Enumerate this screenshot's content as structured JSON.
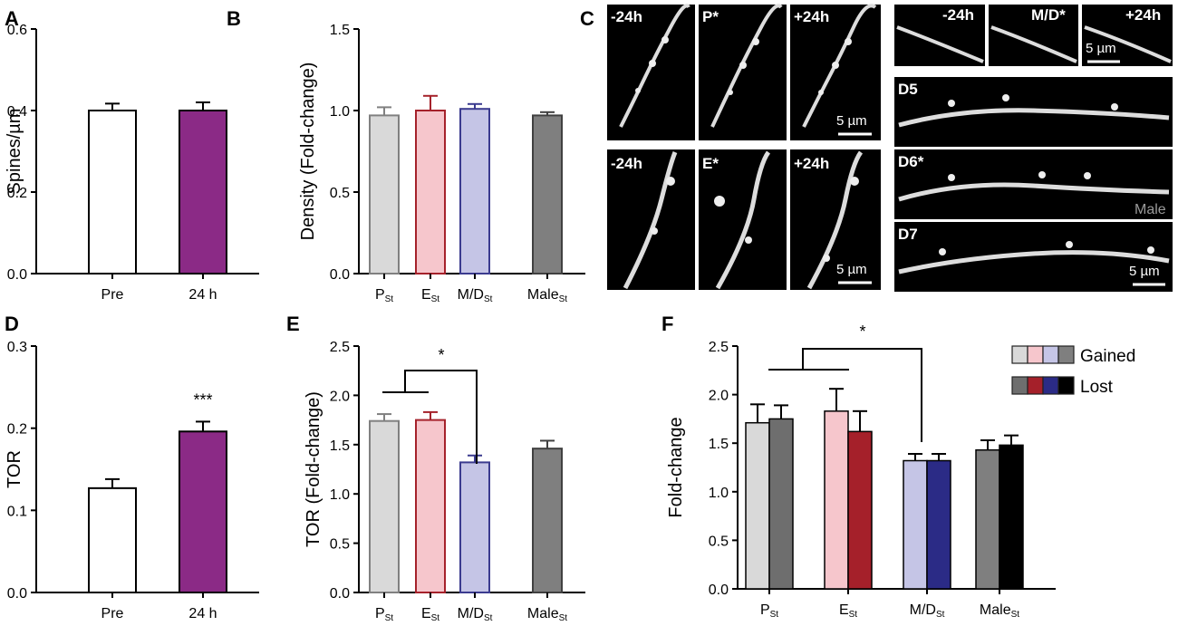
{
  "panels": {
    "A": "A",
    "B": "B",
    "C": "C",
    "D": "D",
    "E": "E",
    "F": "F"
  },
  "chart_data": [
    {
      "id": "A",
      "type": "bar",
      "title": "",
      "xlabel": "",
      "ylabel": "Spines/µm",
      "ylim": [
        0,
        0.6
      ],
      "yticks": [
        "0.0",
        "0.2",
        "0.4",
        "0.6"
      ],
      "categories": [
        "Pre",
        "24 h"
      ],
      "values": [
        0.4,
        0.4
      ],
      "errors": [
        0.017,
        0.02
      ],
      "colors": [
        "#ffffff",
        "#8b2a86"
      ]
    },
    {
      "id": "B",
      "type": "bar",
      "title": "",
      "xlabel": "",
      "ylabel": "Density (Fold-change)",
      "ylim": [
        0,
        1.5
      ],
      "yticks": [
        "0.0",
        "0.5",
        "1.0",
        "1.5"
      ],
      "categories": [
        {
          "main": "P",
          "sub": "St"
        },
        {
          "main": "E",
          "sub": "St"
        },
        {
          "main": "M/D",
          "sub": "St"
        },
        {
          "main": "Male",
          "sub": "St"
        }
      ],
      "values": [
        0.97,
        1.0,
        1.01,
        0.97
      ],
      "errors": [
        0.05,
        0.09,
        0.03,
        0.02
      ],
      "colors": [
        "#d9d9d9",
        "#f6c6cc",
        "#c5c5e6",
        "#7f7f7f"
      ],
      "edges": [
        "#808080",
        "#a5222b",
        "#3b3b8f",
        "#404040"
      ]
    },
    {
      "id": "D",
      "type": "bar",
      "title": "",
      "xlabel": "",
      "ylabel": "TOR",
      "ylim": [
        0,
        0.3
      ],
      "yticks": [
        "0.0",
        "0.1",
        "0.2",
        "0.3"
      ],
      "categories": [
        "Pre",
        "24 h"
      ],
      "values": [
        0.127,
        0.196
      ],
      "errors": [
        0.011,
        0.012
      ],
      "colors": [
        "#ffffff",
        "#8b2a86"
      ],
      "annotation": "***"
    },
    {
      "id": "E",
      "type": "bar",
      "title": "",
      "xlabel": "",
      "ylabel": "TOR (Fold-change)",
      "ylim": [
        0,
        2.5
      ],
      "yticks": [
        "0.0",
        "0.5",
        "1.0",
        "1.5",
        "2.0",
        "2.5"
      ],
      "categories": [
        {
          "main": "P",
          "sub": "St"
        },
        {
          "main": "E",
          "sub": "St"
        },
        {
          "main": "M/D",
          "sub": "St"
        },
        {
          "main": "Male",
          "sub": "St"
        }
      ],
      "values": [
        1.74,
        1.75,
        1.32,
        1.46
      ],
      "errors": [
        0.07,
        0.08,
        0.07,
        0.08
      ],
      "colors": [
        "#d9d9d9",
        "#f6c6cc",
        "#c5c5e6",
        "#7f7f7f"
      ],
      "edges": [
        "#808080",
        "#a5222b",
        "#3b3b8f",
        "#404040"
      ],
      "annotation": "*"
    },
    {
      "id": "F",
      "type": "bar",
      "title": "",
      "xlabel": "",
      "ylabel": "Fold-change",
      "ylim": [
        0,
        2.5
      ],
      "yticks": [
        "0.0",
        "0.5",
        "1.0",
        "1.5",
        "2.0",
        "2.5"
      ],
      "categories": [
        {
          "main": "P",
          "sub": "St"
        },
        {
          "main": "E",
          "sub": "St"
        },
        {
          "main": "M/D",
          "sub": "St"
        },
        {
          "main": "Male",
          "sub": "St"
        }
      ],
      "series": [
        {
          "name": "Gained",
          "values": [
            1.71,
            1.83,
            1.32,
            1.43
          ],
          "errors": [
            0.19,
            0.23,
            0.07,
            0.1
          ],
          "colors": [
            "#d9d9d9",
            "#f6c6cc",
            "#c5c5e6",
            "#7f7f7f"
          ]
        },
        {
          "name": "Lost",
          "values": [
            1.75,
            1.62,
            1.32,
            1.48
          ],
          "errors": [
            0.14,
            0.21,
            0.07,
            0.1
          ],
          "colors": [
            "#6e6e6e",
            "#a5202a",
            "#2b2b86",
            "#000000"
          ]
        }
      ],
      "legend": [
        "Gained",
        "Lost"
      ],
      "legend_position": "top-right",
      "annotation": "*"
    }
  ],
  "micrographs": {
    "top_left": [
      "-24h",
      "P*",
      "+24h"
    ],
    "bottom_left": [
      "-24h",
      "E*",
      "+24h"
    ],
    "top_right": [
      "-24h",
      "M/D*",
      "+24h"
    ],
    "right_stack": [
      "D5",
      "D6*",
      "D7"
    ],
    "male_label": "Male",
    "scale_bar": "5 µm",
    "label_colors": {
      "E": "#ff8a9a",
      "MD": "#8b8bd9",
      "default": "#ffffff"
    }
  }
}
